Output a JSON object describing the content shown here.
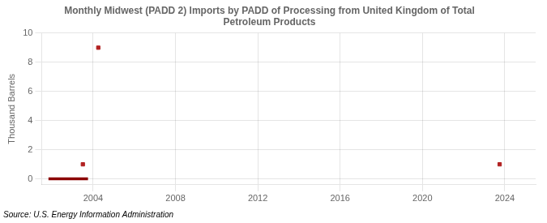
{
  "chart_data": {
    "type": "scatter",
    "title": "Monthly Midwest (PADD 2) Imports by PADD of Processing from United Kingdom of Total\nPetroleum Products",
    "ylabel": "Thousand Barrels",
    "annotations": [
      "Source: U.S. Energy Information Administration"
    ],
    "series": [
      {
        "type": "line",
        "color": "#8b0000",
        "x": [
          2001.83,
          2003.75
        ],
        "values": [
          0.0,
          0.0
        ]
      },
      {
        "type": "scatter",
        "color": "#b22222",
        "marker": "square",
        "x": [
          2003.5,
          2004.25,
          2023.75
        ],
        "values": [
          1,
          9,
          1
        ]
      }
    ],
    "xlim": [
      2001.5,
      2025.5
    ],
    "ylim": [
      -0.4,
      10
    ],
    "xticks": [
      2004,
      2008,
      2012,
      2016,
      2020,
      2024
    ],
    "yticks": [
      0,
      2,
      4,
      6,
      8,
      10
    ],
    "grid": true
  }
}
